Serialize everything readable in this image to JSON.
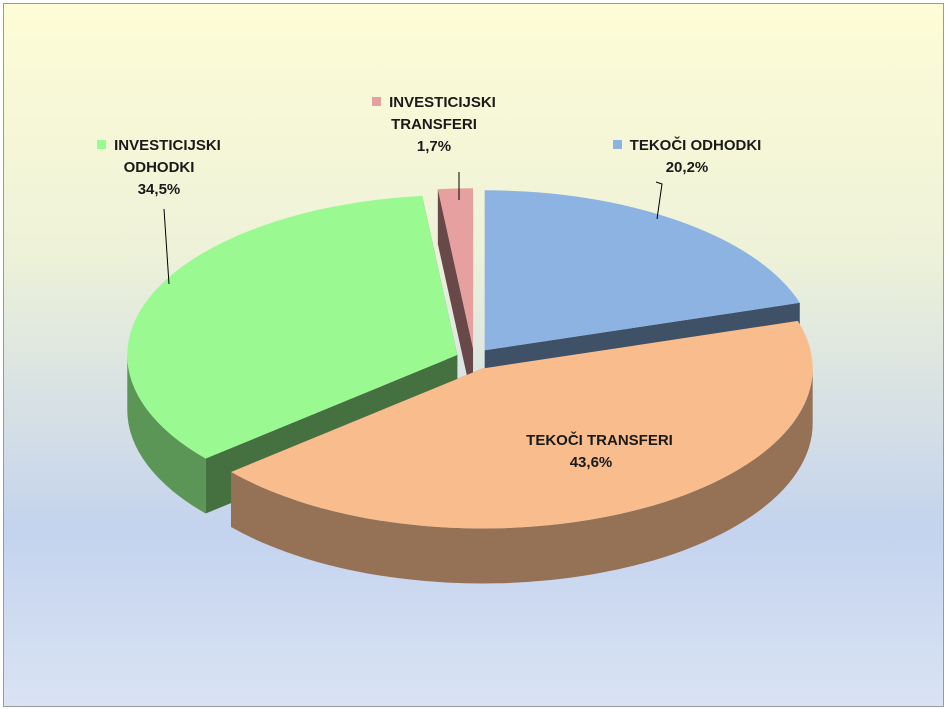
{
  "chart_data": {
    "type": "pie3d",
    "categories": [
      "TEKOČI ODHODKI",
      "TEKOČI TRANSFERI",
      "INVESTICIJSKI ODHODKI",
      "INVESTICIJSKI TRANSFERI"
    ],
    "values": [
      20.2,
      43.6,
      34.5,
      1.7
    ],
    "value_labels": [
      "20,2%",
      "43,6%",
      "34,5%",
      "1,7%"
    ],
    "colors": [
      "#8db3e2",
      "#f9bd8d",
      "#9afa91",
      "#e6a0a0"
    ]
  }
}
